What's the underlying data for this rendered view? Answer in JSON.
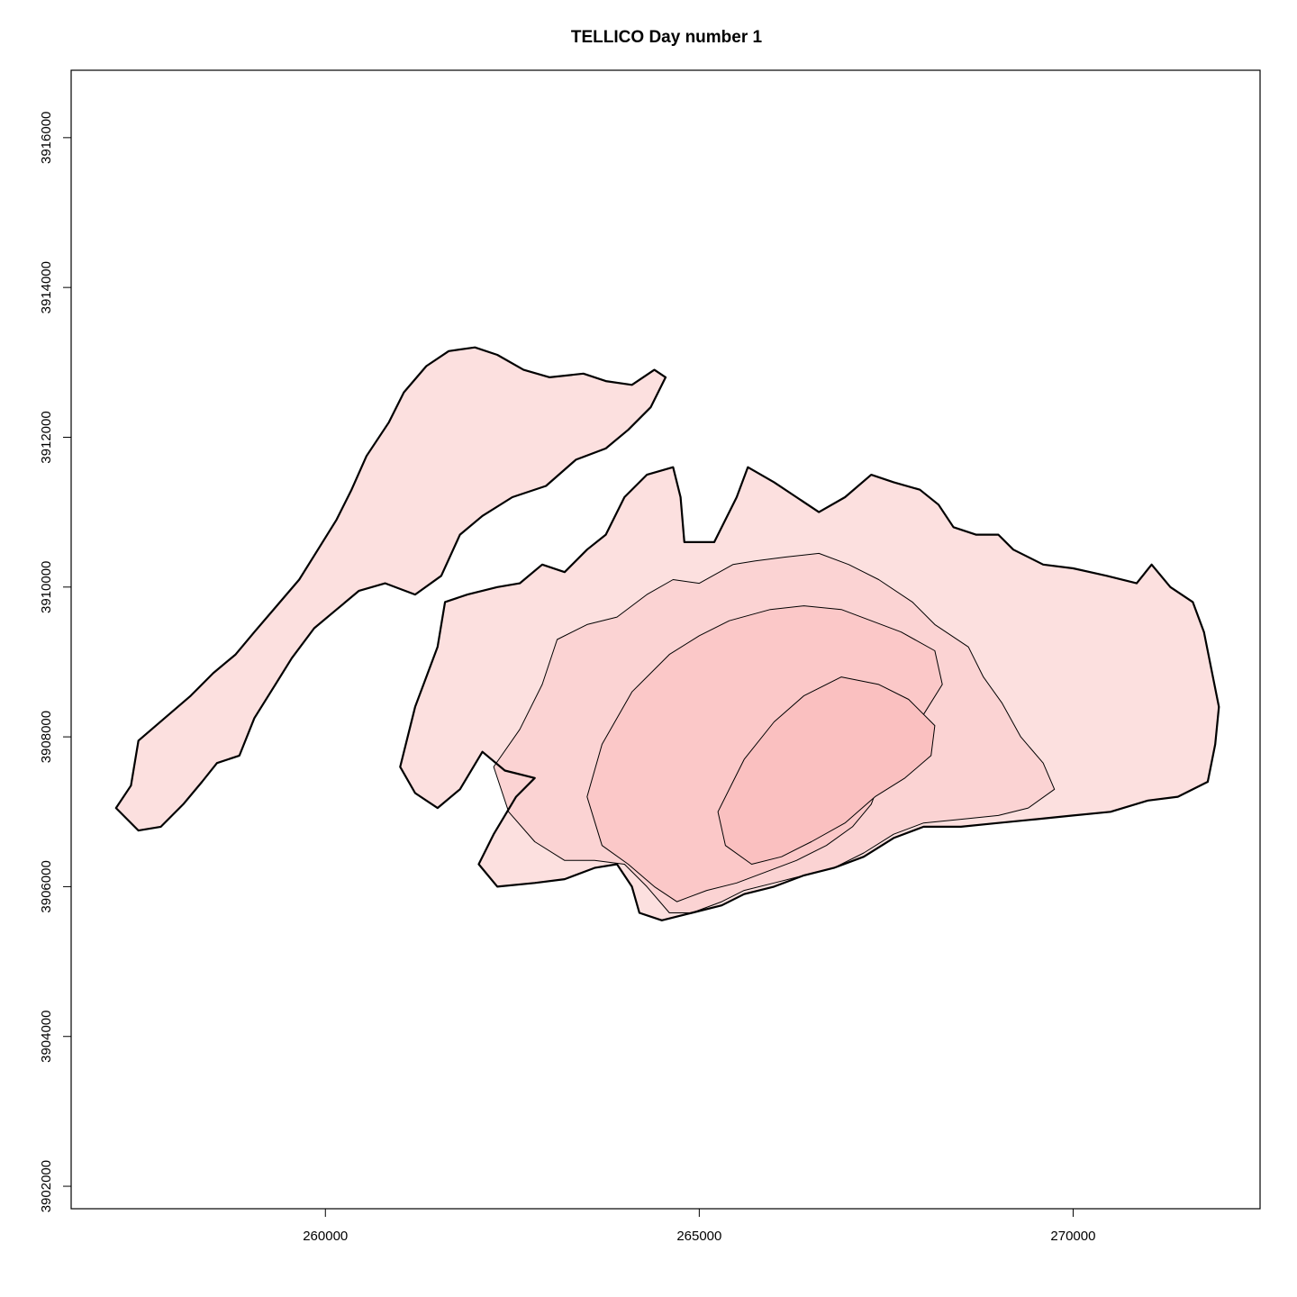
{
  "chart_data": {
    "type": "map",
    "title": "TELLICO   Day number 1",
    "xlabel": "",
    "ylabel": "",
    "xlim": [
      256600,
      272500
    ],
    "ylim": [
      3901700,
      3916900
    ],
    "x_ticks": [
      {
        "value": 260000,
        "label": "260000"
      },
      {
        "value": 265000,
        "label": "265000"
      },
      {
        "value": 270000,
        "label": "270000"
      }
    ],
    "y_ticks": [
      {
        "value": 3902000,
        "label": "3902000"
      },
      {
        "value": 3904000,
        "label": "3904000"
      },
      {
        "value": 3906000,
        "label": "3906000"
      },
      {
        "value": 3908000,
        "label": "3908000"
      },
      {
        "value": 3910000,
        "label": "3910000"
      },
      {
        "value": 3912000,
        "label": "3912000"
      },
      {
        "value": 3914000,
        "label": "3914000"
      },
      {
        "value": 3916000,
        "label": "3916000"
      }
    ],
    "grid": false,
    "colors": {
      "outer_fill": "#fce0df",
      "mid_fill": "#fbd3d3",
      "core_fill": "#fbc8c8",
      "center_fill": "#fac0c0",
      "outline": "#000000"
    },
    "regions": [
      {
        "zone": 1,
        "fill_level": 0.1,
        "points": [
          [
            257200,
            3907050
          ],
          [
            257400,
            3907350
          ],
          [
            257500,
            3907950
          ],
          [
            257850,
            3908250
          ],
          [
            258200,
            3908550
          ],
          [
            258500,
            3908850
          ],
          [
            258800,
            3909100
          ],
          [
            259050,
            3909400
          ],
          [
            259350,
            3909750
          ],
          [
            259650,
            3910100
          ],
          [
            259900,
            3910500
          ],
          [
            260150,
            3910900
          ],
          [
            260350,
            3911300
          ],
          [
            260550,
            3911750
          ],
          [
            260850,
            3912200
          ],
          [
            261050,
            3912600
          ],
          [
            261350,
            3912950
          ],
          [
            261650,
            3913150
          ],
          [
            262000,
            3913200
          ],
          [
            262300,
            3913100
          ],
          [
            262650,
            3912900
          ],
          [
            263000,
            3912800
          ],
          [
            263450,
            3912850
          ],
          [
            263750,
            3912750
          ],
          [
            264100,
            3912700
          ],
          [
            264400,
            3912900
          ],
          [
            264550,
            3912800
          ],
          [
            264350,
            3912400
          ],
          [
            264050,
            3912100
          ],
          [
            263750,
            3911850
          ],
          [
            263350,
            3911700
          ],
          [
            262950,
            3911350
          ],
          [
            262500,
            3911200
          ],
          [
            262100,
            3910950
          ],
          [
            261800,
            3910700
          ],
          [
            261550,
            3910150
          ],
          [
            261200,
            3909900
          ],
          [
            260800,
            3910050
          ],
          [
            260450,
            3909950
          ],
          [
            260150,
            3909700
          ],
          [
            259850,
            3909450
          ],
          [
            259550,
            3909050
          ],
          [
            259300,
            3908650
          ],
          [
            259050,
            3908250
          ],
          [
            258850,
            3907750
          ],
          [
            258550,
            3907650
          ],
          [
            258350,
            3907400
          ],
          [
            258100,
            3907100
          ],
          [
            257800,
            3906800
          ],
          [
            257500,
            3906750
          ],
          [
            257200,
            3907050
          ]
        ]
      },
      {
        "zone": 1,
        "fill_level": 0.1,
        "points": [
          [
            261000,
            3907600
          ],
          [
            261200,
            3908400
          ],
          [
            261500,
            3909200
          ],
          [
            261600,
            3909800
          ],
          [
            261900,
            3909900
          ],
          [
            262300,
            3910000
          ],
          [
            262600,
            3910050
          ],
          [
            262900,
            3910300
          ],
          [
            263200,
            3910200
          ],
          [
            263500,
            3910500
          ],
          [
            263750,
            3910700
          ],
          [
            264000,
            3911200
          ],
          [
            264300,
            3911500
          ],
          [
            264650,
            3911600
          ],
          [
            264750,
            3911200
          ],
          [
            264800,
            3910600
          ],
          [
            265200,
            3910600
          ],
          [
            265500,
            3911200
          ],
          [
            265650,
            3911600
          ],
          [
            266000,
            3911400
          ],
          [
            266300,
            3911200
          ],
          [
            266600,
            3911000
          ],
          [
            266950,
            3911200
          ],
          [
            267300,
            3911500
          ],
          [
            267600,
            3911400
          ],
          [
            267950,
            3911300
          ],
          [
            268200,
            3911100
          ],
          [
            268400,
            3910800
          ],
          [
            268700,
            3910700
          ],
          [
            269000,
            3910700
          ],
          [
            269200,
            3910500
          ],
          [
            269600,
            3910300
          ],
          [
            270000,
            3910250
          ],
          [
            270450,
            3910150
          ],
          [
            270850,
            3910050
          ],
          [
            271050,
            3910300
          ],
          [
            271300,
            3910000
          ],
          [
            271600,
            3909800
          ],
          [
            271750,
            3909400
          ],
          [
            271850,
            3908900
          ],
          [
            271950,
            3908400
          ],
          [
            271900,
            3907900
          ],
          [
            271800,
            3907400
          ],
          [
            271400,
            3907200
          ],
          [
            271000,
            3907150
          ],
          [
            270500,
            3907000
          ],
          [
            270000,
            3906950
          ],
          [
            269500,
            3906900
          ],
          [
            269000,
            3906850
          ],
          [
            268500,
            3906800
          ],
          [
            268000,
            3906800
          ],
          [
            267600,
            3906650
          ],
          [
            267200,
            3906400
          ],
          [
            266800,
            3906250
          ],
          [
            266400,
            3906150
          ],
          [
            266000,
            3906000
          ],
          [
            265600,
            3905900
          ],
          [
            265300,
            3905750
          ],
          [
            264900,
            3905650
          ],
          [
            264500,
            3905550
          ],
          [
            264200,
            3905650
          ],
          [
            264100,
            3906000
          ],
          [
            263900,
            3906300
          ],
          [
            263600,
            3906250
          ],
          [
            263200,
            3906100
          ],
          [
            262800,
            3906050
          ],
          [
            262300,
            3906000
          ],
          [
            262050,
            3906300
          ],
          [
            262250,
            3906700
          ],
          [
            262550,
            3907200
          ],
          [
            262800,
            3907450
          ],
          [
            262400,
            3907550
          ],
          [
            262100,
            3907800
          ],
          [
            261800,
            3907300
          ],
          [
            261500,
            3907050
          ],
          [
            261200,
            3907250
          ],
          [
            261000,
            3907600
          ]
        ]
      },
      {
        "zone": 2,
        "fill_level": 0.35,
        "points": [
          [
            262250,
            3907600
          ],
          [
            262600,
            3908100
          ],
          [
            262900,
            3908700
          ],
          [
            263100,
            3909300
          ],
          [
            263500,
            3909500
          ],
          [
            263900,
            3909600
          ],
          [
            264300,
            3909900
          ],
          [
            264650,
            3910100
          ],
          [
            265000,
            3910050
          ],
          [
            265450,
            3910300
          ],
          [
            265750,
            3910350
          ],
          [
            266150,
            3910400
          ],
          [
            266600,
            3910450
          ],
          [
            267000,
            3910300
          ],
          [
            267400,
            3910100
          ],
          [
            267850,
            3909800
          ],
          [
            268150,
            3909500
          ],
          [
            268600,
            3909200
          ],
          [
            268800,
            3908800
          ],
          [
            269050,
            3908450
          ],
          [
            269300,
            3908000
          ],
          [
            269600,
            3907650
          ],
          [
            269750,
            3907300
          ],
          [
            269400,
            3907050
          ],
          [
            269000,
            3906950
          ],
          [
            268500,
            3906900
          ],
          [
            268000,
            3906850
          ],
          [
            267600,
            3906700
          ],
          [
            267200,
            3906450
          ],
          [
            266800,
            3906250
          ],
          [
            266400,
            3906150
          ],
          [
            266000,
            3906050
          ],
          [
            265600,
            3905950
          ],
          [
            265300,
            3905800
          ],
          [
            264900,
            3905650
          ],
          [
            264600,
            3905650
          ],
          [
            264300,
            3906000
          ],
          [
            264000,
            3906300
          ],
          [
            263600,
            3906350
          ],
          [
            263200,
            3906350
          ],
          [
            262800,
            3906600
          ],
          [
            262450,
            3907000
          ],
          [
            262250,
            3907600
          ]
        ]
      },
      {
        "zone": 3,
        "fill_level": 0.6,
        "points": [
          [
            263500,
            3907200
          ],
          [
            263700,
            3907900
          ],
          [
            264100,
            3908600
          ],
          [
            264600,
            3909100
          ],
          [
            265000,
            3909350
          ],
          [
            265400,
            3909550
          ],
          [
            265950,
            3909700
          ],
          [
            266400,
            3909750
          ],
          [
            266900,
            3909700
          ],
          [
            267300,
            3909550
          ],
          [
            267700,
            3909400
          ],
          [
            268150,
            3909150
          ],
          [
            268250,
            3908700
          ],
          [
            268000,
            3908300
          ],
          [
            267650,
            3907900
          ],
          [
            267450,
            3907500
          ],
          [
            267300,
            3907100
          ],
          [
            267050,
            3906800
          ],
          [
            266700,
            3906550
          ],
          [
            266300,
            3906350
          ],
          [
            265900,
            3906200
          ],
          [
            265500,
            3906050
          ],
          [
            265100,
            3905950
          ],
          [
            264700,
            3905800
          ],
          [
            264400,
            3906000
          ],
          [
            264050,
            3906300
          ],
          [
            263700,
            3906550
          ],
          [
            263500,
            3907200
          ]
        ]
      },
      {
        "zone": 4,
        "fill_level": 0.85,
        "points": [
          [
            265250,
            3907000
          ],
          [
            265600,
            3907700
          ],
          [
            266000,
            3908200
          ],
          [
            266400,
            3908550
          ],
          [
            266900,
            3908800
          ],
          [
            267400,
            3908700
          ],
          [
            267800,
            3908500
          ],
          [
            268150,
            3908150
          ],
          [
            268100,
            3907750
          ],
          [
            267750,
            3907450
          ],
          [
            267350,
            3907200
          ],
          [
            266950,
            3906850
          ],
          [
            266500,
            3906600
          ],
          [
            266100,
            3906400
          ],
          [
            265700,
            3906300
          ],
          [
            265350,
            3906550
          ],
          [
            265250,
            3907000
          ]
        ]
      }
    ]
  }
}
